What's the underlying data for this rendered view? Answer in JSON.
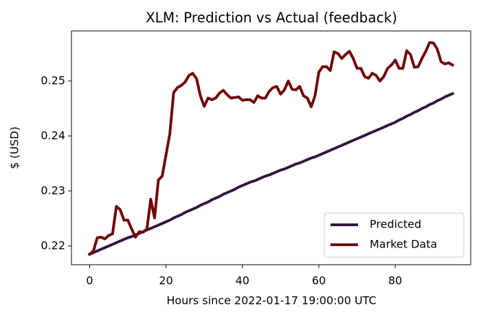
{
  "chart_data": {
    "type": "line",
    "title": "XLM: Prediction vs Actual (feedback)",
    "x_label": "Hours since 2022-01-17 19:00:00 UTC",
    "y_label": "$ (USD)",
    "x": [
      0,
      1,
      2,
      3,
      4,
      5,
      6,
      7,
      8,
      9,
      10,
      11,
      12,
      13,
      14,
      15,
      16,
      17,
      18,
      19,
      20,
      21,
      22,
      23,
      24,
      25,
      26,
      27,
      28,
      29,
      30,
      31,
      32,
      33,
      34,
      35,
      36,
      37,
      38,
      39,
      40,
      41,
      42,
      43,
      44,
      45,
      46,
      47,
      48,
      49,
      50,
      51,
      52,
      53,
      54,
      55,
      56,
      57,
      58,
      59,
      60,
      61,
      62,
      63,
      64,
      65,
      66,
      67,
      68,
      69,
      70,
      71,
      72,
      73,
      74,
      75,
      76,
      77,
      78,
      79,
      80,
      81,
      82,
      83,
      84,
      85,
      86,
      87,
      88,
      89,
      90,
      91,
      92,
      93,
      94,
      95
    ],
    "series": [
      {
        "name": "Predicted",
        "color": "#33163f",
        "values": [
          0.2185,
          0.2188,
          0.2191,
          0.2194,
          0.2197,
          0.22,
          0.2203,
          0.2206,
          0.2209,
          0.2212,
          0.2215,
          0.2217,
          0.222,
          0.2223,
          0.2226,
          0.2229,
          0.2232,
          0.2235,
          0.2238,
          0.2241,
          0.2244,
          0.2247,
          0.2251,
          0.2254,
          0.2257,
          0.2261,
          0.2264,
          0.2267,
          0.227,
          0.2274,
          0.2277,
          0.228,
          0.2284,
          0.2287,
          0.229,
          0.2294,
          0.2297,
          0.23,
          0.2303,
          0.2307,
          0.231,
          0.2313,
          0.2316,
          0.2318,
          0.2321,
          0.2324,
          0.2327,
          0.2329,
          0.2332,
          0.2335,
          0.2338,
          0.234,
          0.2343,
          0.2346,
          0.2349,
          0.2351,
          0.2354,
          0.2357,
          0.236,
          0.2362,
          0.2365,
          0.2368,
          0.2371,
          0.2374,
          0.2377,
          0.238,
          0.2383,
          0.2386,
          0.2389,
          0.2392,
          0.2395,
          0.2398,
          0.2401,
          0.2404,
          0.2407,
          0.241,
          0.2413,
          0.2416,
          0.2419,
          0.2422,
          0.2425,
          0.2429,
          0.2432,
          0.2436,
          0.2439,
          0.2443,
          0.2446,
          0.245,
          0.2453,
          0.2457,
          0.246,
          0.2464,
          0.2467,
          0.2471,
          0.2474,
          0.2477
        ]
      },
      {
        "name": "Market Data",
        "color": "#6e0a0a",
        "values": [
          0.2185,
          0.2191,
          0.2215,
          0.2216,
          0.2213,
          0.2219,
          0.2222,
          0.2272,
          0.2266,
          0.2247,
          0.2247,
          0.2231,
          0.2216,
          0.2226,
          0.2225,
          0.2231,
          0.2285,
          0.2251,
          0.232,
          0.2327,
          0.2366,
          0.2404,
          0.2479,
          0.2488,
          0.2492,
          0.2498,
          0.251,
          0.2514,
          0.2504,
          0.2473,
          0.2454,
          0.2469,
          0.2466,
          0.2469,
          0.2478,
          0.2483,
          0.2475,
          0.2469,
          0.247,
          0.2471,
          0.2465,
          0.2466,
          0.2466,
          0.2461,
          0.2473,
          0.2469,
          0.2469,
          0.2481,
          0.2488,
          0.249,
          0.2476,
          0.2484,
          0.25,
          0.2485,
          0.2484,
          0.249,
          0.2473,
          0.2469,
          0.2453,
          0.2473,
          0.2516,
          0.2526,
          0.2526,
          0.2519,
          0.2553,
          0.255,
          0.2541,
          0.2548,
          0.2554,
          0.2541,
          0.2523,
          0.2523,
          0.2508,
          0.2505,
          0.2514,
          0.251,
          0.25,
          0.2508,
          0.2523,
          0.2529,
          0.2538,
          0.2523,
          0.2523,
          0.2555,
          0.2548,
          0.2525,
          0.2526,
          0.2541,
          0.2554,
          0.257,
          0.2569,
          0.2558,
          0.2535,
          0.2531,
          0.2533,
          0.2529
        ]
      }
    ],
    "xlim": [
      -4.75,
      99.75
    ],
    "xticks": [
      0,
      20,
      40,
      60,
      80
    ],
    "ylim": [
      0.2166,
      0.2591
    ],
    "yticks": [
      0.22,
      0.23,
      0.24,
      0.25
    ],
    "grid": false,
    "legend": "lower right"
  }
}
